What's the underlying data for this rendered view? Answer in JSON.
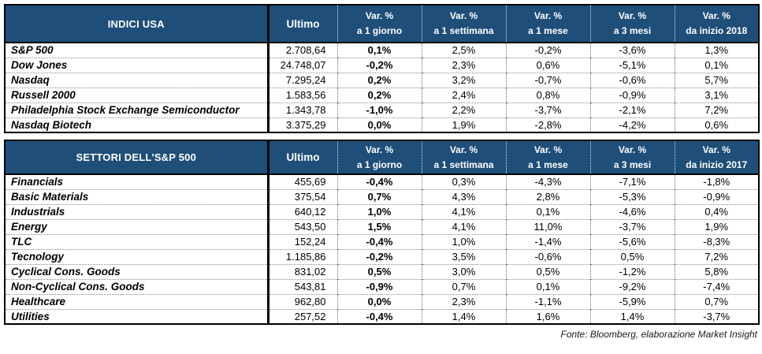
{
  "colors": {
    "header_bg": "#1F4E79",
    "header_text": "#FFFFFF",
    "border": "#000000"
  },
  "footer": "Fonte: Bloomberg, elaborazione Market Insight",
  "chart_data": [
    {
      "type": "table",
      "title": "INDICI USA",
      "columns": [
        "INDICI USA",
        "Ultimo",
        "Var. %\na 1 giorno",
        "Var. %\na 1 settimana",
        "Var. %\na 1 mese",
        "Var. %\na 3 mesi",
        "Var. %\nda inizio 2018"
      ],
      "rows": [
        [
          "S&P 500",
          "2.708,64",
          "0,1%",
          "2,5%",
          "-0,2%",
          "-3,6%",
          "1,3%"
        ],
        [
          "Dow Jones",
          "24.748,07",
          "-0,2%",
          "2,3%",
          "0,6%",
          "-5,1%",
          "0,1%"
        ],
        [
          "Nasdaq",
          "7.295,24",
          "0,2%",
          "3,2%",
          "-0,7%",
          "-0,6%",
          "5,7%"
        ],
        [
          "Russell 2000",
          "1.583,56",
          "0,2%",
          "2,4%",
          "0,8%",
          "-0,9%",
          "3,1%"
        ],
        [
          "Philadelphia Stock Exchange Semiconductor",
          "1.343,78",
          "-1,0%",
          "2,2%",
          "-3,7%",
          "-2,1%",
          "7,2%"
        ],
        [
          "Nasdaq Biotech",
          "3.375,29",
          "0,0%",
          "1,9%",
          "-2,8%",
          "-4,2%",
          "0,6%"
        ]
      ]
    },
    {
      "type": "table",
      "title": "SETTORI DELL'S&P 500",
      "columns": [
        "SETTORI DELL'S&P 500",
        "Ultimo",
        "Var. %\na 1 giorno",
        "Var. %\na 1 settimana",
        "Var. %\na 1 mese",
        "Var. %\na 3 mesi",
        "Var. %\nda inizio 2017"
      ],
      "rows": [
        [
          "Financials",
          "455,69",
          "-0,4%",
          "0,3%",
          "-4,3%",
          "-7,1%",
          "-1,8%"
        ],
        [
          "Basic Materials",
          "375,54",
          "0,7%",
          "4,3%",
          "2,8%",
          "-5,3%",
          "-0,9%"
        ],
        [
          "Industrials",
          "640,12",
          "1,0%",
          "4,1%",
          "0,1%",
          "-4,6%",
          "0,4%"
        ],
        [
          "Energy",
          "543,50",
          "1,5%",
          "4,1%",
          "11,0%",
          "-3,7%",
          "1,9%"
        ],
        [
          "TLC",
          "152,24",
          "-0,4%",
          "1,0%",
          "-1,4%",
          "-5,6%",
          "-8,3%"
        ],
        [
          "Tecnology",
          "1.185,86",
          "-0,2%",
          "3,5%",
          "-0,6%",
          "0,5%",
          "7,2%"
        ],
        [
          "Cyclical Cons. Goods",
          "831,02",
          "0,5%",
          "3,0%",
          "0,5%",
          "-1,2%",
          "5,8%"
        ],
        [
          "Non-Cyclical Cons. Goods",
          "543,81",
          "-0,9%",
          "0,7%",
          "0,1%",
          "-9,2%",
          "-7,4%"
        ],
        [
          "Healthcare",
          "962,80",
          "0,0%",
          "2,3%",
          "-1,1%",
          "-5,9%",
          "0,7%"
        ],
        [
          "Utilities",
          "257,52",
          "-0,4%",
          "1,4%",
          "1,6%",
          "1,4%",
          "-3,7%"
        ]
      ]
    }
  ]
}
